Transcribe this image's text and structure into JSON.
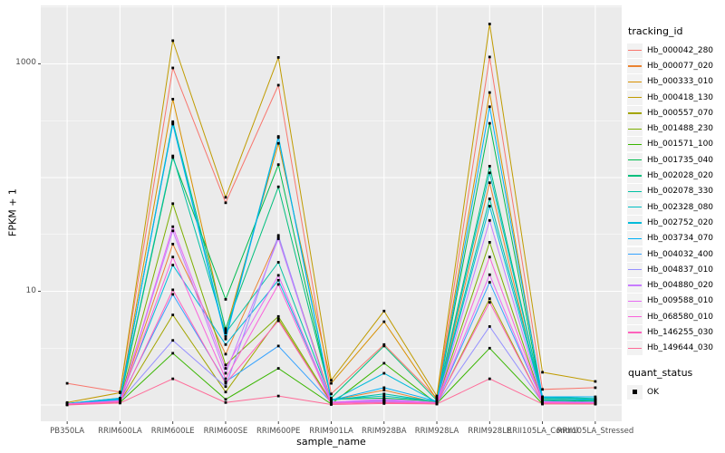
{
  "figure": {
    "panel_bg": "#EBEBEB",
    "grid_color": "#FFFFFF",
    "axis_text_color": "#4D4D4D",
    "tick_mark_color": "#333333",
    "point_color": "#000000",
    "legend_key_bg": "#F2F2F2"
  },
  "axes": {
    "x_title": "sample_name",
    "y_title": "FPKM + 1",
    "y_ticks": [
      {
        "label": "1000",
        "value": 1000
      },
      {
        "label": "10",
        "value": 10
      }
    ]
  },
  "legend": {
    "tracking_title": "tracking_id",
    "quant_title": "quant_status",
    "quant_items": [
      {
        "label": "OK",
        "marker": "black-square"
      }
    ]
  },
  "chart_data": {
    "type": "line",
    "x_type": "categorical",
    "y_scale": "log10",
    "xlabel": "sample_name",
    "ylabel": "FPKM + 1",
    "ylim": [
      0.72,
      3270
    ],
    "y_major_breaks": [
      1,
      10,
      100,
      1000
    ],
    "y_labeled_breaks": [
      10,
      1000
    ],
    "grid": true,
    "legend_position": "right",
    "point_marker": "small-black-square",
    "categories": [
      "PB350LA",
      "RRIM600LA",
      "RRIM600LE",
      "RRIM600SE",
      "RRIM600PE",
      "RRIM901LA",
      "RRIM928BA",
      "RRIM928LA",
      "RRIM928LE",
      "RRII105LA_Control",
      "RRII105LA_Stressed"
    ],
    "series": [
      {
        "name": "Hb_000042_280",
        "color": "#F8766D",
        "values": [
          1.55,
          1.3,
          920,
          60,
          650,
          1.25,
          3.4,
          1.15,
          1150,
          1.37,
          1.42
        ]
      },
      {
        "name": "Hb_000077_020",
        "color": "#EA8331",
        "values": [
          1.02,
          1.1,
          26,
          2.8,
          30,
          1.1,
          1.35,
          1.05,
          90,
          1.06,
          1.05
        ]
      },
      {
        "name": "Hb_000333_010",
        "color": "#D89000",
        "values": [
          1.03,
          1.15,
          490,
          4.5,
          200,
          1.55,
          5.4,
          1.12,
          560,
          1.12,
          1.1
        ]
      },
      {
        "name": "Hb_000418_130",
        "color": "#C09B00",
        "values": [
          1.05,
          1.28,
          1600,
          67,
          1140,
          1.65,
          6.7,
          1.2,
          2240,
          1.94,
          1.61
        ]
      },
      {
        "name": "Hb_000557_070",
        "color": "#A3A500",
        "values": [
          1.01,
          1.06,
          6.2,
          1.3,
          5.7,
          1.03,
          1.05,
          1.02,
          8.6,
          1.03,
          1.02
        ]
      },
      {
        "name": "Hb_001488_230",
        "color": "#7CAE00",
        "values": [
          1.02,
          1.08,
          59,
          2.25,
          6.0,
          1.06,
          1.1,
          1.06,
          27,
          1.05,
          1.04
        ]
      },
      {
        "name": "Hb_001571_100",
        "color": "#39B600",
        "values": [
          1.01,
          1.05,
          2.85,
          1.12,
          2.1,
          1.02,
          2.33,
          1.03,
          3.16,
          1.02,
          1.02
        ]
      },
      {
        "name": "Hb_001735_040",
        "color": "#00BB4E",
        "values": [
          1.02,
          1.1,
          150,
          8.5,
          130,
          1.12,
          1.15,
          1.08,
          300,
          1.1,
          1.08
        ]
      },
      {
        "name": "Hb_002028_020",
        "color": "#00BF7D",
        "values": [
          1.03,
          1.12,
          310,
          4.7,
          83,
          1.15,
          3.3,
          1.1,
          126,
          1.15,
          1.12
        ]
      },
      {
        "name": "Hb_002078_330",
        "color": "#00C1A3",
        "values": [
          1.02,
          1.14,
          155,
          4.3,
          18,
          1.1,
          1.25,
          1.07,
          65,
          1.18,
          1.14
        ]
      },
      {
        "name": "Hb_002328_080",
        "color": "#00BFC4",
        "values": [
          1.03,
          1.15,
          300,
          4.0,
          230,
          1.12,
          1.2,
          1.08,
          110,
          1.16,
          1.12
        ]
      },
      {
        "name": "Hb_002752_020",
        "color": "#00BBDA",
        "values": [
          1.02,
          1.12,
          17,
          3.4,
          12.5,
          1.08,
          1.9,
          1.06,
          56,
          1.12,
          1.1
        ]
      },
      {
        "name": "Hb_003734_070",
        "color": "#00B0F6",
        "values": [
          1.03,
          1.14,
          295,
          3.8,
          225,
          1.1,
          1.42,
          1.08,
          420,
          1.18,
          1.18
        ]
      },
      {
        "name": "Hb_004032_400",
        "color": "#35A2FF",
        "values": [
          1.02,
          1.1,
          9.4,
          1.6,
          3.3,
          1.05,
          1.1,
          1.04,
          12,
          1.08,
          1.06
        ]
      },
      {
        "name": "Hb_004837_010",
        "color": "#9590FF",
        "values": [
          1.01,
          1.08,
          3.7,
          1.45,
          31,
          1.04,
          1.08,
          1.03,
          4.9,
          1.05,
          1.04
        ]
      },
      {
        "name": "Hb_004880_020",
        "color": "#C77CFF",
        "values": [
          1.02,
          1.09,
          34,
          1.9,
          29,
          1.06,
          1.12,
          1.05,
          42,
          1.07,
          1.05
        ]
      },
      {
        "name": "Hb_009588_010",
        "color": "#E76BF3",
        "values": [
          1.01,
          1.07,
          37,
          2.1,
          13.8,
          1.05,
          1.1,
          1.04,
          14,
          1.06,
          1.05
        ]
      },
      {
        "name": "Hb_068580_010",
        "color": "#FA62DB",
        "values": [
          1.02,
          1.08,
          20,
          1.7,
          11.5,
          1.04,
          1.06,
          1.04,
          20,
          1.05,
          1.04
        ]
      },
      {
        "name": "Hb_146255_030",
        "color": "#FF62BC",
        "values": [
          1.01,
          1.06,
          10.3,
          1.55,
          5.5,
          1.03,
          1.05,
          1.03,
          8.0,
          1.04,
          1.03
        ]
      },
      {
        "name": "Hb_149644_030",
        "color": "#FF6A98",
        "values": [
          1.0,
          1.04,
          1.7,
          1.05,
          1.2,
          1.01,
          1.03,
          1.02,
          1.7,
          1.02,
          1.02
        ]
      }
    ]
  }
}
